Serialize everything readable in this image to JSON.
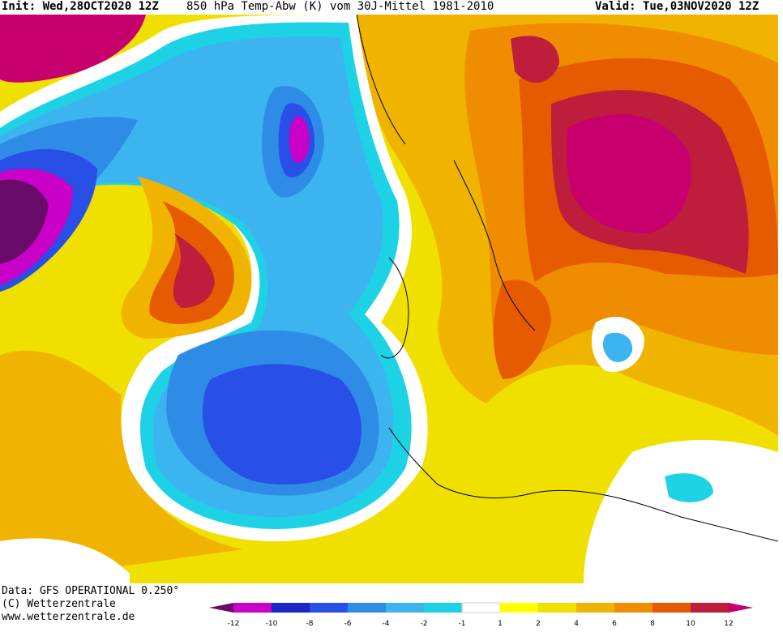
{
  "header": {
    "init": "Init: Wed,28OCT2020 12Z",
    "parameter": "850 hPa Temp-Abw (K) vom 30J-Mittel 1981-2010",
    "valid": "Valid: Tue,03NOV2020 12Z"
  },
  "footer": {
    "data_source": "Data: GFS OPERATIONAL 0.250°",
    "copyright": "(C) Wetterzentrale",
    "website": "www.wetterzentrale.de"
  },
  "legend": {
    "ticks": [
      "-12",
      "-10",
      "-8",
      "-6",
      "-4",
      "-2",
      "-1",
      "1",
      "2",
      "4",
      "6",
      "8",
      "10",
      "12"
    ],
    "colors": {
      "below_-12": "#6a0a6a",
      "-12_-10": "#c800c8",
      "-10_-8": "#1a28c8",
      "-8_-6": "#2850e6",
      "-6_-4": "#2e8ce6",
      "-4_-2": "#3cb4f0",
      "-2_-1": "#1ed2e6",
      "-1_1": "#ffffff",
      "1_2": "#ffff00",
      "2_4": "#f0e000",
      "4_6": "#f0b400",
      "6_8": "#f08c00",
      "8_10": "#e65a00",
      "10_12": "#be1e3c",
      "above_12": "#c8006e"
    }
  }
}
